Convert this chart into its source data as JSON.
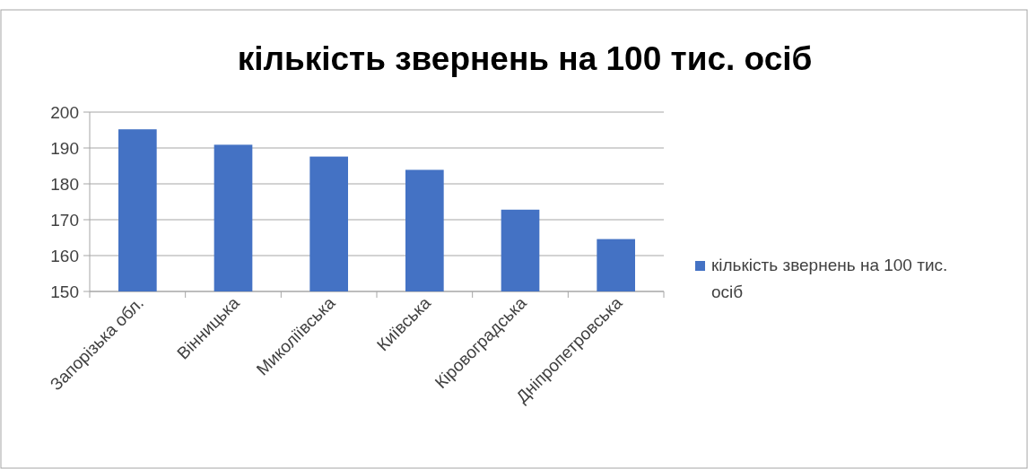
{
  "chart_data": {
    "type": "bar",
    "title": "кількість звернень на 100 тис. осіб",
    "categories": [
      "Запорізька обл.",
      "Вінницька",
      "Миколіївська",
      "Київська",
      "Кіровоградська",
      "Дніпропетровська"
    ],
    "series": [
      {
        "name": "кількість звернень на 100 тис. осіб",
        "color": "#4472c4",
        "values": [
          195.2,
          190.9,
          187.6,
          183.9,
          172.8,
          164.6
        ]
      }
    ],
    "ylim": [
      150,
      200
    ],
    "yticks": [
      150,
      160,
      170,
      180,
      190,
      200
    ],
    "grid": "y",
    "legend": "right"
  }
}
